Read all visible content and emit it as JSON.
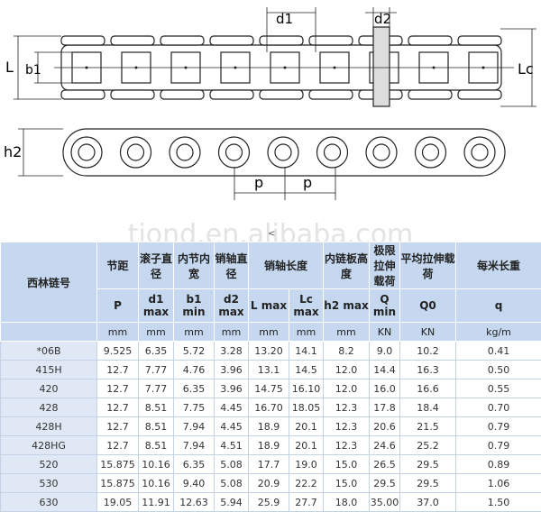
{
  "drawing": {
    "labels": {
      "d1": "d1",
      "d2": "d2",
      "L": "L",
      "b1": "b1",
      "Lc": "Lc",
      "h2": "h2",
      "p1": "p",
      "p2": "p"
    }
  },
  "watermark": "tjond.en.alibaba.com",
  "marker": "<",
  "table": {
    "header1": [
      "西林链号",
      "节距",
      "滚子直径",
      "内节内宽",
      "销轴直径",
      "销轴长度",
      "内链板高度",
      "极限拉伸载荷",
      "平均拉伸载荷",
      "每米长重"
    ],
    "header2": [
      "P",
      "d1 max",
      "b1 min",
      "d2 max",
      "L max",
      "Lc max",
      "h2 max",
      "Q min",
      "Q0",
      "q"
    ],
    "units": [
      "mm",
      "mm",
      "mm",
      "mm",
      "mm",
      "mm",
      "mm",
      "KN",
      "KN",
      "kg/m"
    ],
    "rows": [
      [
        "*06B",
        "9.525",
        "6.35",
        "5.72",
        "3.28",
        "13.20",
        "14.1",
        "8.2",
        "9.0",
        "10.2",
        "0.41"
      ],
      [
        "415H",
        "12.7",
        "7.77",
        "4.76",
        "3.96",
        "13.1",
        "14.5",
        "12.0",
        "14.4",
        "16.3",
        "0.50"
      ],
      [
        "420",
        "12.7",
        "7.77",
        "6.35",
        "3.96",
        "14.75",
        "16.10",
        "12.0",
        "16.0",
        "16.6",
        "0.55"
      ],
      [
        "428",
        "12.7",
        "8.51",
        "7.75",
        "4.45",
        "16.70",
        "18.05",
        "12.3",
        "17.8",
        "18.4",
        "0.70"
      ],
      [
        "428H",
        "12.7",
        "8.51",
        "7.94",
        "4.45",
        "18.9",
        "20.1",
        "12.3",
        "20.6",
        "21.5",
        "0.79"
      ],
      [
        "428HG",
        "12.7",
        "8.51",
        "7.94",
        "4.51",
        "18.9",
        "20.1",
        "12.3",
        "24.6",
        "25.2",
        "0.79"
      ],
      [
        "520",
        "15.875",
        "10.16",
        "6.35",
        "5.08",
        "17.7",
        "19.0",
        "15.0",
        "26.5",
        "29.5",
        "0.89"
      ],
      [
        "530",
        "15.875",
        "10.16",
        "9.40",
        "5.08",
        "20.9",
        "22.2",
        "15.0",
        "29.5",
        "29.5",
        "1.06"
      ],
      [
        "630",
        "19.05",
        "11.91",
        "12.63",
        "5.94",
        "25.9",
        "27.7",
        "18.0",
        "35.00",
        "37.0",
        "1.50"
      ]
    ]
  }
}
